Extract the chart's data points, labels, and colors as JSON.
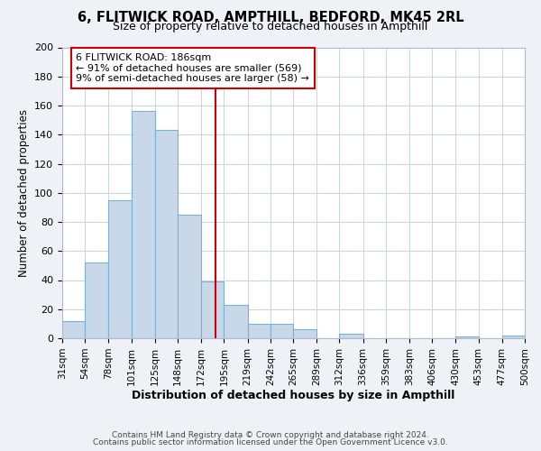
{
  "title": "6, FLITWICK ROAD, AMPTHILL, BEDFORD, MK45 2RL",
  "subtitle": "Size of property relative to detached houses in Ampthill",
  "xlabel": "Distribution of detached houses by size in Ampthill",
  "ylabel": "Number of detached properties",
  "bar_color": "#c8d8e8",
  "bar_edge_color": "#7bafd4",
  "vline_x": 186,
  "vline_color": "#cc0000",
  "bin_edges": [
    31,
    54,
    78,
    101,
    125,
    148,
    172,
    195,
    219,
    242,
    265,
    289,
    312,
    336,
    359,
    383,
    406,
    430,
    453,
    477,
    500
  ],
  "bar_heights": [
    12,
    52,
    95,
    156,
    143,
    85,
    39,
    23,
    10,
    10,
    6,
    0,
    3,
    0,
    0,
    0,
    0,
    1,
    0,
    2
  ],
  "tick_labels": [
    "31sqm",
    "54sqm",
    "78sqm",
    "101sqm",
    "125sqm",
    "148sqm",
    "172sqm",
    "195sqm",
    "219sqm",
    "242sqm",
    "265sqm",
    "289sqm",
    "312sqm",
    "336sqm",
    "359sqm",
    "383sqm",
    "406sqm",
    "430sqm",
    "453sqm",
    "477sqm",
    "500sqm"
  ],
  "annotation_title": "6 FLITWICK ROAD: 186sqm",
  "annotation_line1": "← 91% of detached houses are smaller (569)",
  "annotation_line2": "9% of semi-detached houses are larger (58) →",
  "annotation_box_color": "#ffffff",
  "annotation_box_edge": "#cc0000",
  "footnote1": "Contains HM Land Registry data © Crown copyright and database right 2024.",
  "footnote2": "Contains public sector information licensed under the Open Government Licence v3.0.",
  "ylim": [
    0,
    200
  ],
  "yticks": [
    0,
    20,
    40,
    60,
    80,
    100,
    120,
    140,
    160,
    180,
    200
  ],
  "background_color": "#eef2f7",
  "plot_background": "#ffffff",
  "grid_color": "#c8d4e0"
}
